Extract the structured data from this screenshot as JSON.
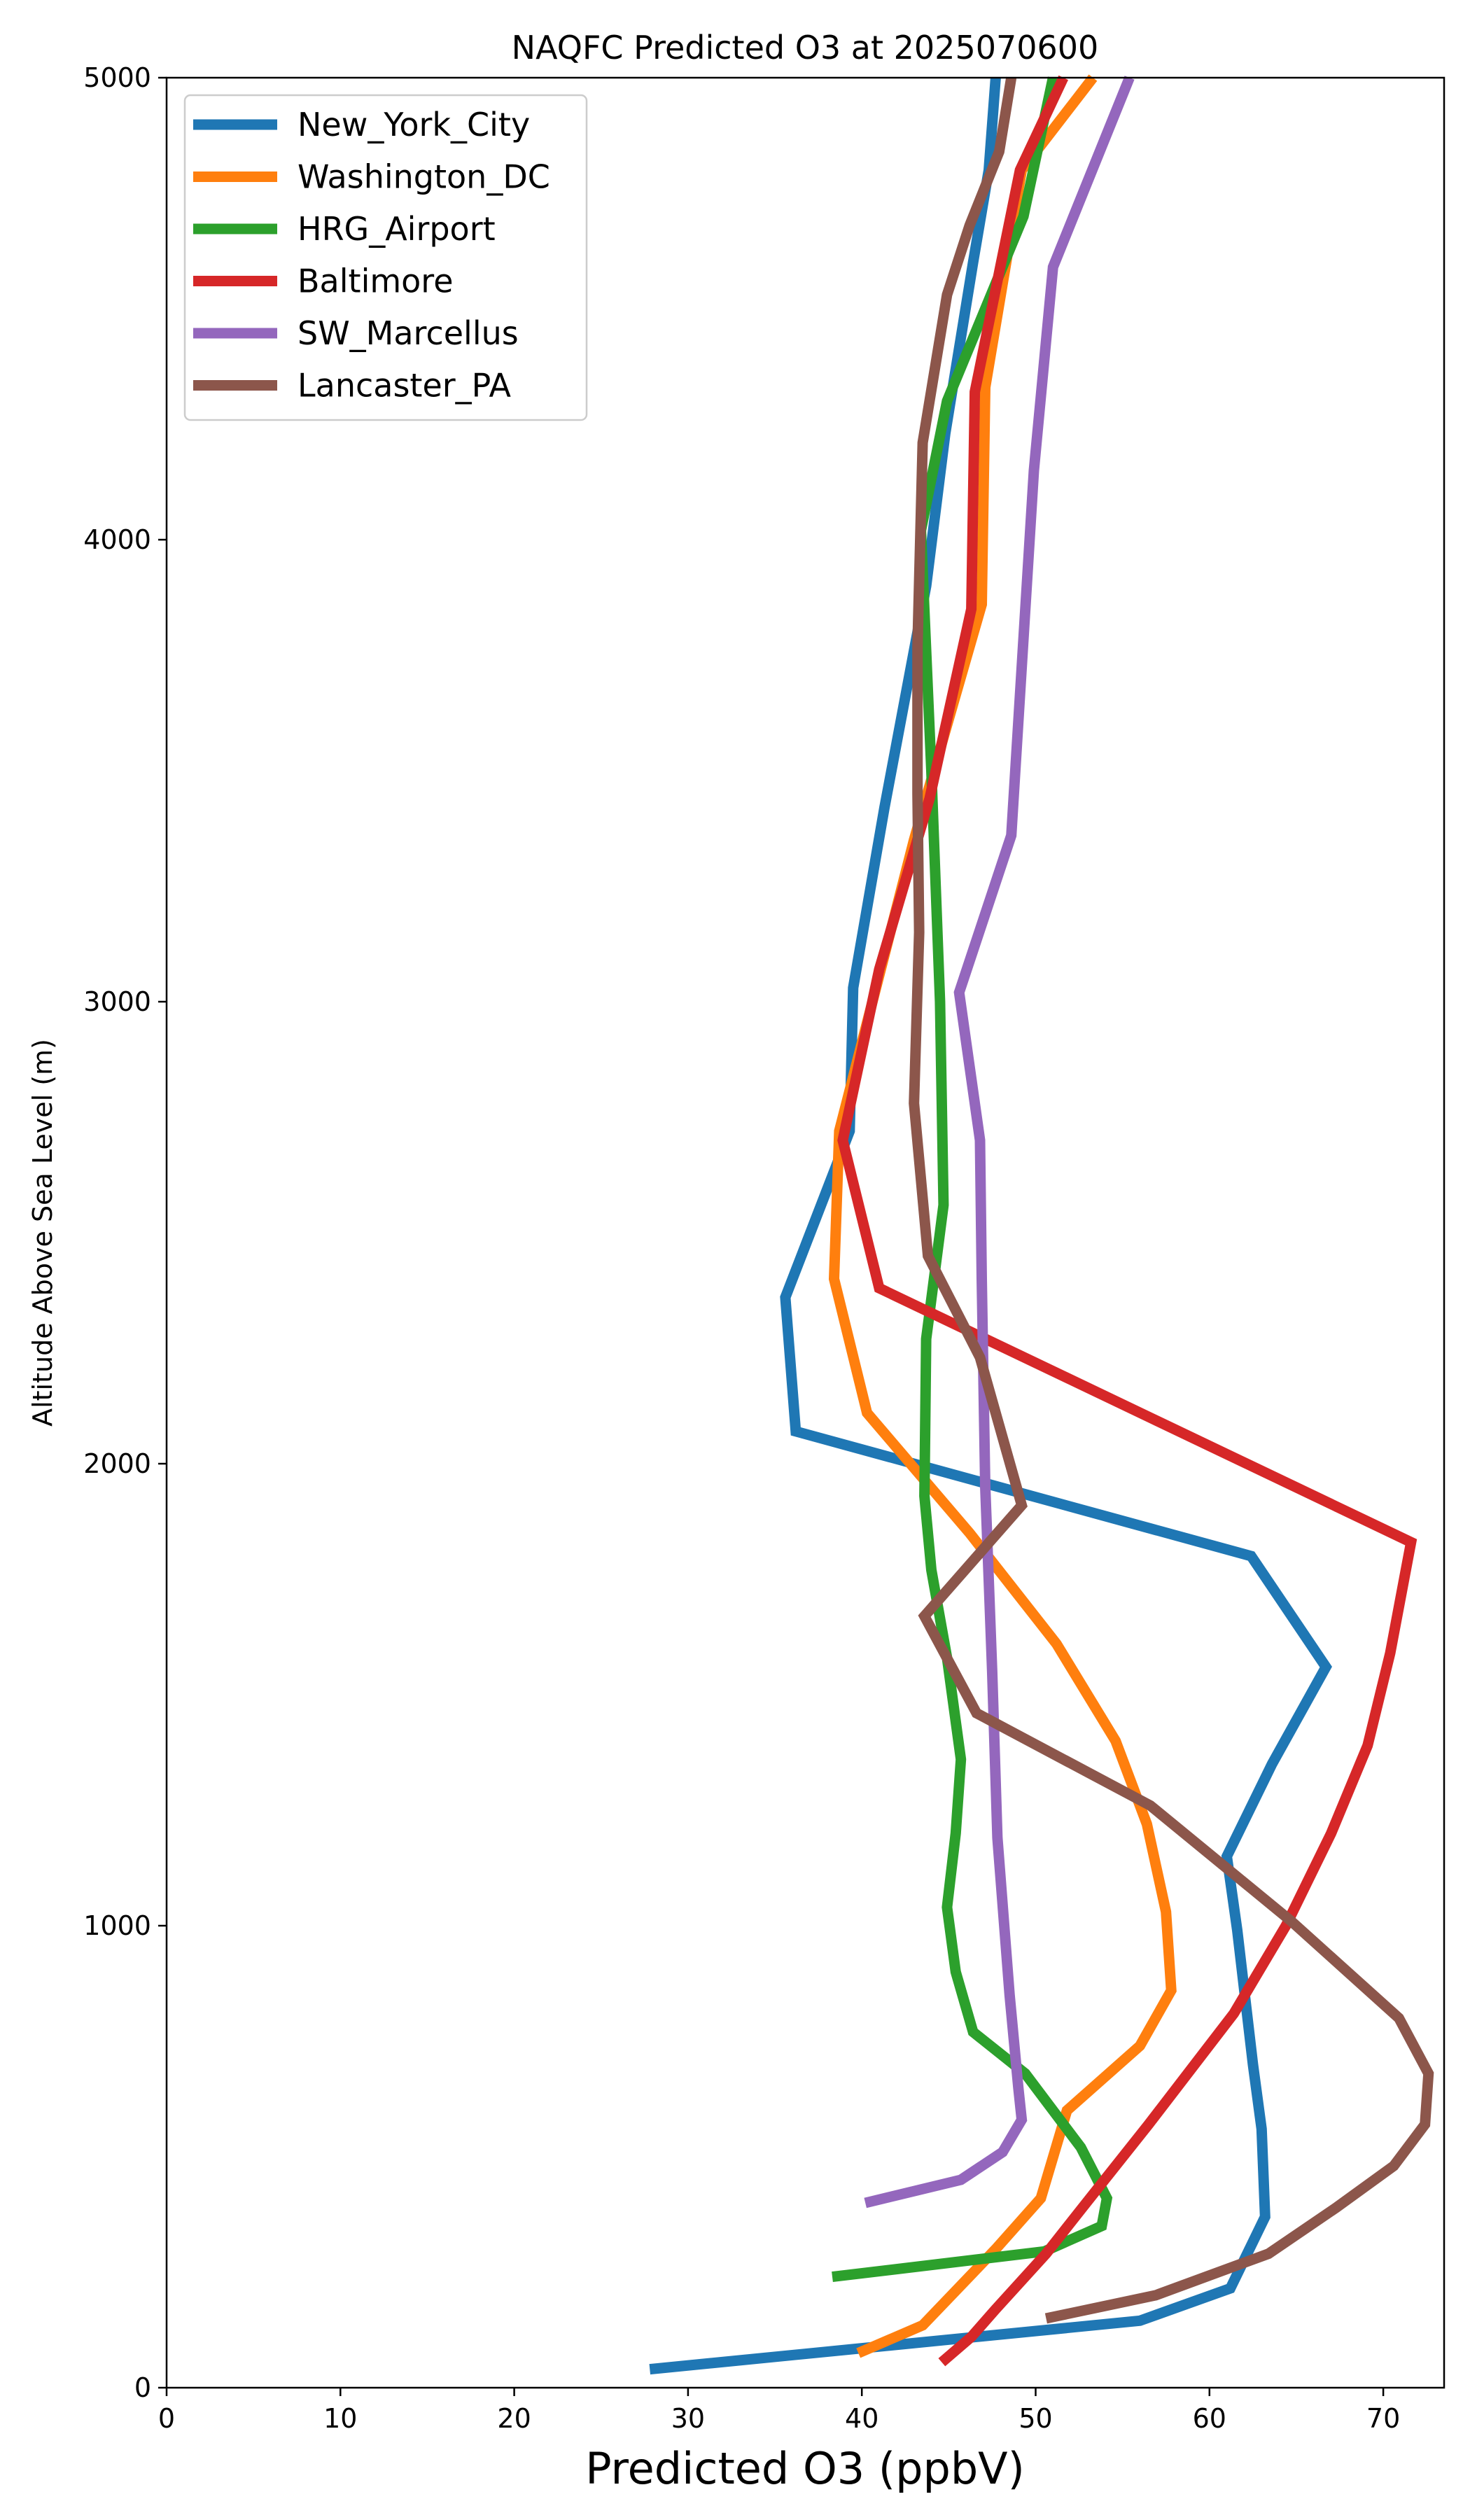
{
  "chart_data": {
    "type": "line",
    "title": "NAQFC Predicted O3 at 2025070600",
    "xlabel": "Predicted O3 (ppbV)",
    "ylabel": "Altitude Above Sea Level (m)",
    "xlim": [
      0,
      73.5
    ],
    "ylim": [
      0,
      5000
    ],
    "xticks": [
      0,
      10,
      20,
      30,
      40,
      50,
      60,
      70
    ],
    "yticks": [
      0,
      1000,
      2000,
      3000,
      4000,
      5000
    ],
    "legend_position": "top-left",
    "grid": false,
    "series": [
      {
        "name": "New_York_City",
        "color": "#1f77b4",
        "points": [
          [
            27.8,
            40
          ],
          [
            56,
            145
          ],
          [
            61.2,
            215
          ],
          [
            63.2,
            370
          ],
          [
            63,
            560
          ],
          [
            62.5,
            700
          ],
          [
            61.6,
            990
          ],
          [
            61,
            1150
          ],
          [
            63.6,
            1350
          ],
          [
            66.7,
            1560
          ],
          [
            62.4,
            1800
          ],
          [
            36.2,
            2070
          ],
          [
            35.6,
            2360
          ],
          [
            39.3,
            2720
          ],
          [
            39.5,
            3030
          ],
          [
            41.3,
            3420
          ],
          [
            43.7,
            3900
          ],
          [
            44.8,
            4230
          ],
          [
            46.4,
            4600
          ],
          [
            47.3,
            4800
          ],
          [
            47.7,
            5000
          ]
        ]
      },
      {
        "name": "Washington_DC",
        "color": "#ff7f0e",
        "points": [
          [
            39.8,
            75
          ],
          [
            43.5,
            135
          ],
          [
            47.7,
            300
          ],
          [
            50.3,
            410
          ],
          [
            51.8,
            600
          ],
          [
            56,
            740
          ],
          [
            57.8,
            860
          ],
          [
            57.5,
            1030
          ],
          [
            56.4,
            1220
          ],
          [
            54.6,
            1400
          ],
          [
            51.2,
            1610
          ],
          [
            46.2,
            1850
          ],
          [
            40.3,
            2110
          ],
          [
            38.4,
            2400
          ],
          [
            38.7,
            2720
          ],
          [
            43,
            3350
          ],
          [
            46.9,
            3860
          ],
          [
            47.1,
            4330
          ],
          [
            49.2,
            4800
          ],
          [
            53.3,
            5000
          ]
        ]
      },
      {
        "name": "HRG_Airport",
        "color": "#2ca02c",
        "points": [
          [
            38.3,
            240
          ],
          [
            50.5,
            295
          ],
          [
            53.8,
            350
          ],
          [
            54.1,
            410
          ],
          [
            52.6,
            520
          ],
          [
            49.4,
            680
          ],
          [
            46.4,
            770
          ],
          [
            45.4,
            900
          ],
          [
            44.9,
            1040
          ],
          [
            45.4,
            1200
          ],
          [
            45.7,
            1360
          ],
          [
            44.9,
            1580
          ],
          [
            44,
            1770
          ],
          [
            43.6,
            1930
          ],
          [
            43.7,
            2270
          ],
          [
            44.7,
            2560
          ],
          [
            44.5,
            3000
          ],
          [
            44,
            3500
          ],
          [
            43.4,
            4020
          ],
          [
            44.9,
            4300
          ],
          [
            49.3,
            4700
          ],
          [
            51,
            5000
          ]
        ]
      },
      {
        "name": "Baltimore",
        "color": "#d62728",
        "points": [
          [
            44.6,
            55
          ],
          [
            46.3,
            110
          ],
          [
            47.7,
            170
          ],
          [
            50.6,
            290
          ],
          [
            52.7,
            390
          ],
          [
            56.5,
            570
          ],
          [
            61.4,
            810
          ],
          [
            64.4,
            1000
          ],
          [
            67,
            1200
          ],
          [
            69.1,
            1390
          ],
          [
            70.4,
            1590
          ],
          [
            71.6,
            1830
          ],
          [
            41,
            2380
          ],
          [
            38.9,
            2700
          ],
          [
            41,
            3070
          ],
          [
            43.9,
            3440
          ],
          [
            46.3,
            3850
          ],
          [
            46.5,
            4320
          ],
          [
            49.1,
            4800
          ],
          [
            51.6,
            5000
          ]
        ]
      },
      {
        "name": "SW_Marcellus",
        "color": "#9467bd",
        "points": [
          [
            40.2,
            400
          ],
          [
            45.7,
            450
          ],
          [
            48.1,
            510
          ],
          [
            49.2,
            580
          ],
          [
            49,
            650
          ],
          [
            48.5,
            850
          ],
          [
            47.8,
            1190
          ],
          [
            47.5,
            1550
          ],
          [
            47.1,
            1950
          ],
          [
            46.9,
            2400
          ],
          [
            46.8,
            2700
          ],
          [
            45.6,
            3020
          ],
          [
            48.6,
            3360
          ],
          [
            49.9,
            4150
          ],
          [
            51,
            4590
          ],
          [
            55.4,
            5000
          ]
        ]
      },
      {
        "name": "Lancaster_PA",
        "color": "#8c564b",
        "points": [
          [
            50.6,
            150
          ],
          [
            56.9,
            200
          ],
          [
            63.4,
            290
          ],
          [
            67.3,
            390
          ],
          [
            70.6,
            480
          ],
          [
            72.4,
            570
          ],
          [
            72.6,
            680
          ],
          [
            70.9,
            800
          ],
          [
            64.7,
            1010
          ],
          [
            56.6,
            1260
          ],
          [
            46.6,
            1460
          ],
          [
            43.6,
            1670
          ],
          [
            49.2,
            1910
          ],
          [
            46.8,
            2230
          ],
          [
            43.8,
            2450
          ],
          [
            43,
            2780
          ],
          [
            43.3,
            3150
          ],
          [
            43.2,
            3450
          ],
          [
            43.2,
            3770
          ],
          [
            43.5,
            4210
          ],
          [
            44.9,
            4530
          ],
          [
            46.2,
            4680
          ],
          [
            47.9,
            4840
          ],
          [
            48.6,
            5000
          ]
        ]
      }
    ]
  }
}
